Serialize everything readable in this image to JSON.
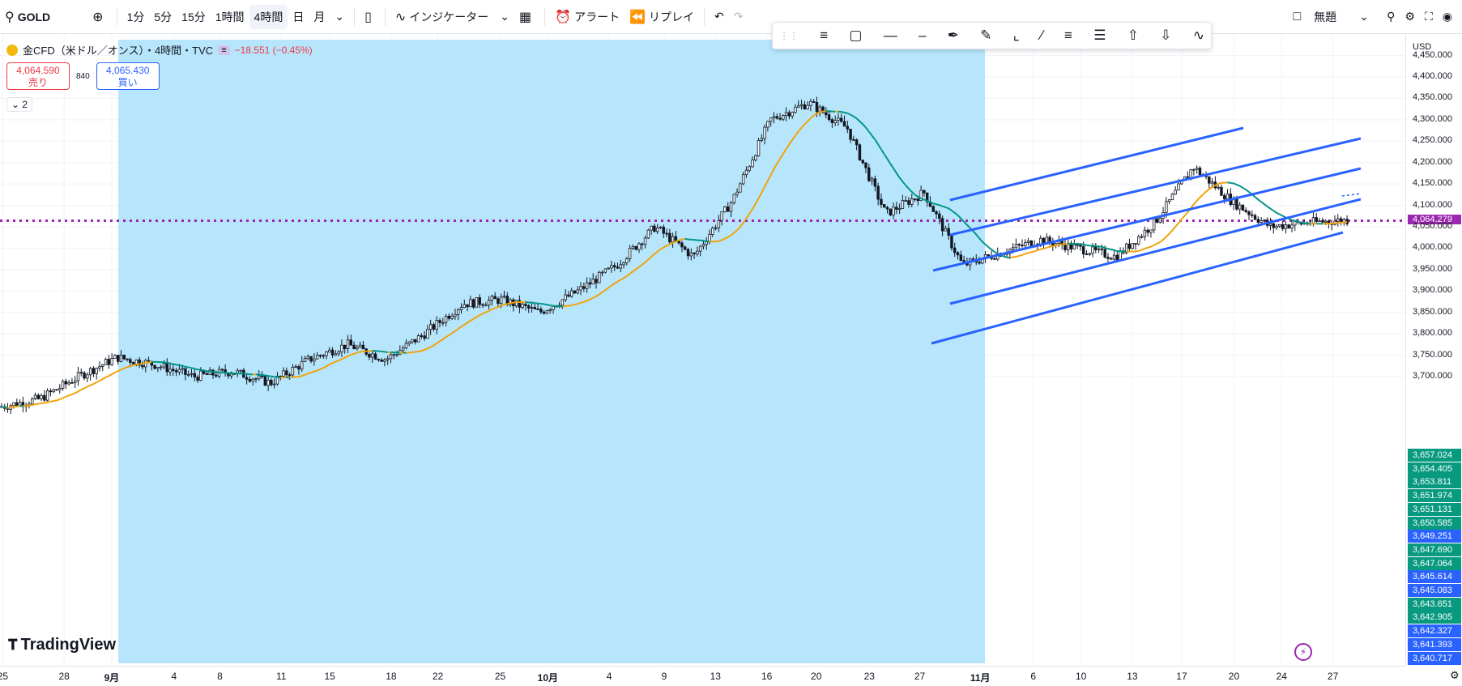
{
  "topbar": {
    "symbol": "GOLD",
    "intervals": [
      "1分",
      "5分",
      "15分",
      "1時間",
      "4時間",
      "日",
      "月"
    ],
    "active_interval": 4,
    "indicators": "インジケーター",
    "alert": "アラート",
    "replay": "リプレイ",
    "layout_name": "無題"
  },
  "legend": {
    "title": "金CFD（米ドル／オンス）・4時間・TVC",
    "change": "−18.551 (−0.45%)"
  },
  "pricebox": {
    "sell_price": "4,064.590",
    "sell_label": "売り",
    "spread": "840",
    "buy_price": "4,065.430",
    "buy_label": "買い"
  },
  "collapse_count": "2",
  "logo_text": "TradingView",
  "price_axis": {
    "currency": "USD",
    "labels": [
      "4,450.000",
      "4,400.000",
      "4,350.000",
      "4,300.000",
      "4,250.000",
      "4,200.000",
      "4,150.000",
      "4,100.000",
      "4,064.279",
      "4,050.000",
      "4,000.000",
      "3,950.000",
      "3,900.000",
      "3,850.000",
      "3,800.000",
      "3,750.000",
      "3,700.000"
    ],
    "current_price": "4,064.279",
    "stack_labels": [
      {
        "text": "3,657.024",
        "color": "#089981"
      },
      {
        "text": "3,654.405",
        "color": "#089981"
      },
      {
        "text": "3,653.811",
        "color": "#089981"
      },
      {
        "text": "3,651.974",
        "color": "#089981"
      },
      {
        "text": "3,651.131",
        "color": "#089981"
      },
      {
        "text": "3,650.585",
        "color": "#089981"
      },
      {
        "text": "3,649.251",
        "color": "#2962ff"
      },
      {
        "text": "3,647.690",
        "color": "#089981"
      },
      {
        "text": "3,647.064",
        "color": "#089981"
      },
      {
        "text": "3,645.614",
        "color": "#2962ff"
      },
      {
        "text": "3,645.083",
        "color": "#2962ff"
      },
      {
        "text": "3,643.651",
        "color": "#089981"
      },
      {
        "text": "3,642.905",
        "color": "#089981"
      },
      {
        "text": "3,642.327",
        "color": "#2962ff"
      },
      {
        "text": "3,641.393",
        "color": "#2962ff"
      },
      {
        "text": "3,640.717",
        "color": "#2962ff"
      }
    ]
  },
  "time_axis": [
    "25",
    "28",
    "9月",
    "4",
    "8",
    "11",
    "15",
    "18",
    "22",
    "25",
    "10月",
    "4",
    "9",
    "13",
    "16",
    "20",
    "23",
    "27",
    "11月",
    "6",
    "10",
    "13",
    "17",
    "20",
    "24",
    "27"
  ],
  "chart_data": {
    "type": "candlestick",
    "symbol": "GOLD",
    "interval": "4時間",
    "ylim": [
      3620,
      4460
    ],
    "current_price": 4064.279,
    "close_path": [
      [
        0,
        3630
      ],
      [
        1,
        3648
      ],
      [
        2,
        3700
      ],
      [
        3,
        3745
      ],
      [
        4,
        3728
      ],
      [
        5,
        3700
      ],
      [
        6,
        3712
      ],
      [
        7,
        3685
      ],
      [
        8,
        3740
      ],
      [
        9,
        3775
      ],
      [
        10,
        3740
      ],
      [
        11,
        3800
      ],
      [
        12,
        3870
      ],
      [
        13,
        3880
      ],
      [
        14,
        3850
      ],
      [
        15,
        3900
      ],
      [
        16,
        3960
      ],
      [
        17,
        4050
      ],
      [
        18,
        3980
      ],
      [
        19,
        4110
      ],
      [
        20,
        4300
      ],
      [
        21,
        4340
      ],
      [
        22,
        4280
      ],
      [
        23,
        4080
      ],
      [
        24,
        4130
      ],
      [
        25,
        3960
      ],
      [
        26,
        3990
      ],
      [
        27,
        4020
      ],
      [
        28,
        4000
      ],
      [
        29,
        3980
      ],
      [
        30,
        4060
      ],
      [
        31,
        4190
      ],
      [
        32,
        4110
      ],
      [
        33,
        4050
      ],
      [
        34,
        4060
      ],
      [
        35,
        4066
      ]
    ],
    "highlight_range": "9月 → 11月",
    "channel": "parallel channel, 5 lines, rising"
  }
}
